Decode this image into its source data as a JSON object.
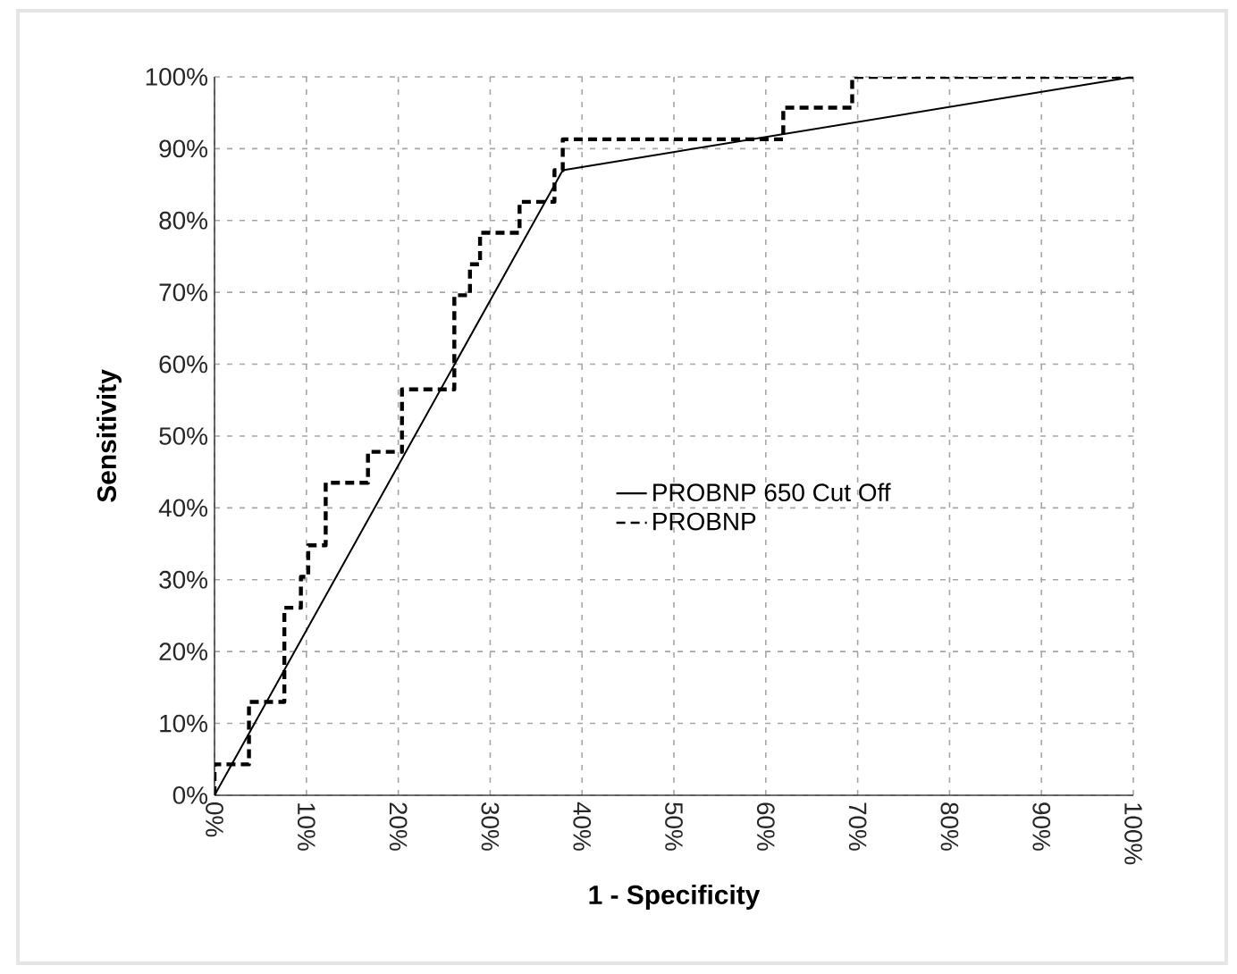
{
  "chart_data": {
    "type": "line",
    "xlabel": "1 - Specificity",
    "ylabel": "Sensitivity",
    "series": [
      {
        "name": "PROBNP 650 Cut Off",
        "color": "#000000",
        "line_style": "solid",
        "x": [
          0,
          37.9,
          100
        ],
        "values": [
          0,
          87.0,
          100
        ]
      },
      {
        "name": "PROBNP",
        "type": "step",
        "color": "#000000",
        "line_style": "dashed",
        "x": [
          0,
          0,
          3.75,
          7.6,
          9.4,
          10.2,
          12.1,
          16.7,
          20.4,
          26.1,
          27.8,
          28.9,
          33.2,
          37.0,
          37.9,
          61.9,
          69.4,
          100
        ],
        "values": [
          0,
          4.3,
          13.0,
          26.1,
          30.4,
          34.8,
          43.5,
          47.8,
          56.5,
          69.6,
          73.9,
          78.3,
          82.6,
          87.0,
          91.3,
          95.7,
          100,
          100
        ]
      }
    ],
    "xlim": [
      0,
      100
    ],
    "ylim": [
      0,
      100
    ],
    "xticks": [
      {
        "value": 0,
        "label": "0%"
      },
      {
        "value": 10,
        "label": "10%"
      },
      {
        "value": 20,
        "label": "20%"
      },
      {
        "value": 30,
        "label": "30%"
      },
      {
        "value": 40,
        "label": "40%"
      },
      {
        "value": 50,
        "label": "50%"
      },
      {
        "value": 60,
        "label": "60%"
      },
      {
        "value": 70,
        "label": "70%"
      },
      {
        "value": 80,
        "label": "80%"
      },
      {
        "value": 90,
        "label": "90%"
      },
      {
        "value": 100,
        "label": "100%"
      }
    ],
    "yticks": [
      {
        "value": 0,
        "label": "0%"
      },
      {
        "value": 10,
        "label": "10%"
      },
      {
        "value": 20,
        "label": "20%"
      },
      {
        "value": 30,
        "label": "30%"
      },
      {
        "value": 40,
        "label": "40%"
      },
      {
        "value": 50,
        "label": "50%"
      },
      {
        "value": 60,
        "label": "60%"
      },
      {
        "value": 70,
        "label": "70%"
      },
      {
        "value": 80,
        "label": "80%"
      },
      {
        "value": 90,
        "label": "90%"
      },
      {
        "value": 100,
        "label": "100%"
      }
    ],
    "grid": true,
    "legend": "center",
    "marker": "none"
  }
}
